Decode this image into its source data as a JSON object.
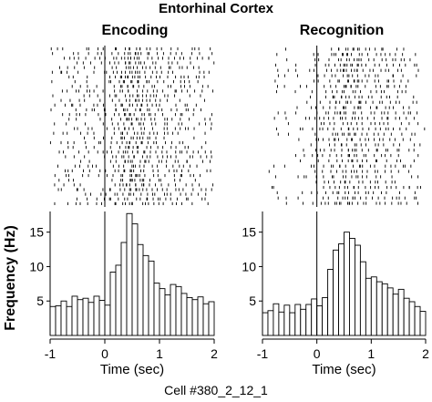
{
  "figure": {
    "title": "Entorhinal Cortex",
    "footer": "Cell #380_2_12_1"
  },
  "chart_data": [
    {
      "type": "bar",
      "title": "Encoding",
      "xlabel": "Time (sec)",
      "ylabel": "Frequency (Hz)",
      "xlim": [
        -1,
        2
      ],
      "ylim": [
        0,
        18
      ],
      "x_ticks": [
        "-1",
        "0",
        "1",
        "2"
      ],
      "y_ticks": [
        "5",
        "10",
        "15"
      ],
      "event_time": 0,
      "raster_trials": 34,
      "bin_width": 0.1,
      "bin_starts": [
        -1.0,
        -0.9,
        -0.8,
        -0.7,
        -0.6,
        -0.5,
        -0.4,
        -0.3,
        -0.2,
        -0.1,
        0.0,
        0.1,
        0.2,
        0.3,
        0.4,
        0.5,
        0.6,
        0.7,
        0.8,
        0.9,
        1.0,
        1.1,
        1.2,
        1.3,
        1.4,
        1.5,
        1.6,
        1.7,
        1.8,
        1.9
      ],
      "values": [
        4.2,
        4.3,
        5.0,
        4.2,
        5.7,
        5.2,
        5.4,
        4.8,
        5.7,
        5.1,
        4.4,
        9.2,
        10.2,
        13.5,
        17.7,
        16.2,
        13.2,
        11.6,
        10.8,
        7.6,
        6.8,
        5.9,
        7.4,
        7.1,
        6.1,
        5.5,
        5.2,
        5.6,
        4.6,
        4.9
      ]
    },
    {
      "type": "bar",
      "title": "Recognition",
      "xlabel": "Time (sec)",
      "ylabel": "",
      "xlim": [
        -1,
        2
      ],
      "ylim": [
        0,
        18
      ],
      "x_ticks": [
        "-1",
        "0",
        "1",
        "2"
      ],
      "y_ticks": [
        "5",
        "10",
        "15"
      ],
      "event_time": 0,
      "raster_trials": 30,
      "bin_width": 0.1,
      "bin_starts": [
        -1.0,
        -0.9,
        -0.8,
        -0.7,
        -0.6,
        -0.5,
        -0.4,
        -0.3,
        -0.2,
        -0.1,
        0.0,
        0.1,
        0.2,
        0.3,
        0.4,
        0.5,
        0.6,
        0.7,
        0.8,
        0.9,
        1.0,
        1.1,
        1.2,
        1.3,
        1.4,
        1.5,
        1.6,
        1.7,
        1.8,
        1.9
      ],
      "values": [
        3.3,
        3.6,
        4.6,
        3.4,
        4.4,
        3.3,
        4.5,
        3.8,
        4.5,
        5.3,
        4.3,
        5.5,
        9.6,
        12.4,
        13.3,
        15.0,
        14.1,
        13.1,
        10.7,
        8.3,
        8.5,
        7.8,
        7.5,
        6.9,
        6.0,
        6.7,
        5.4,
        4.9,
        4.2,
        3.5
      ]
    }
  ]
}
